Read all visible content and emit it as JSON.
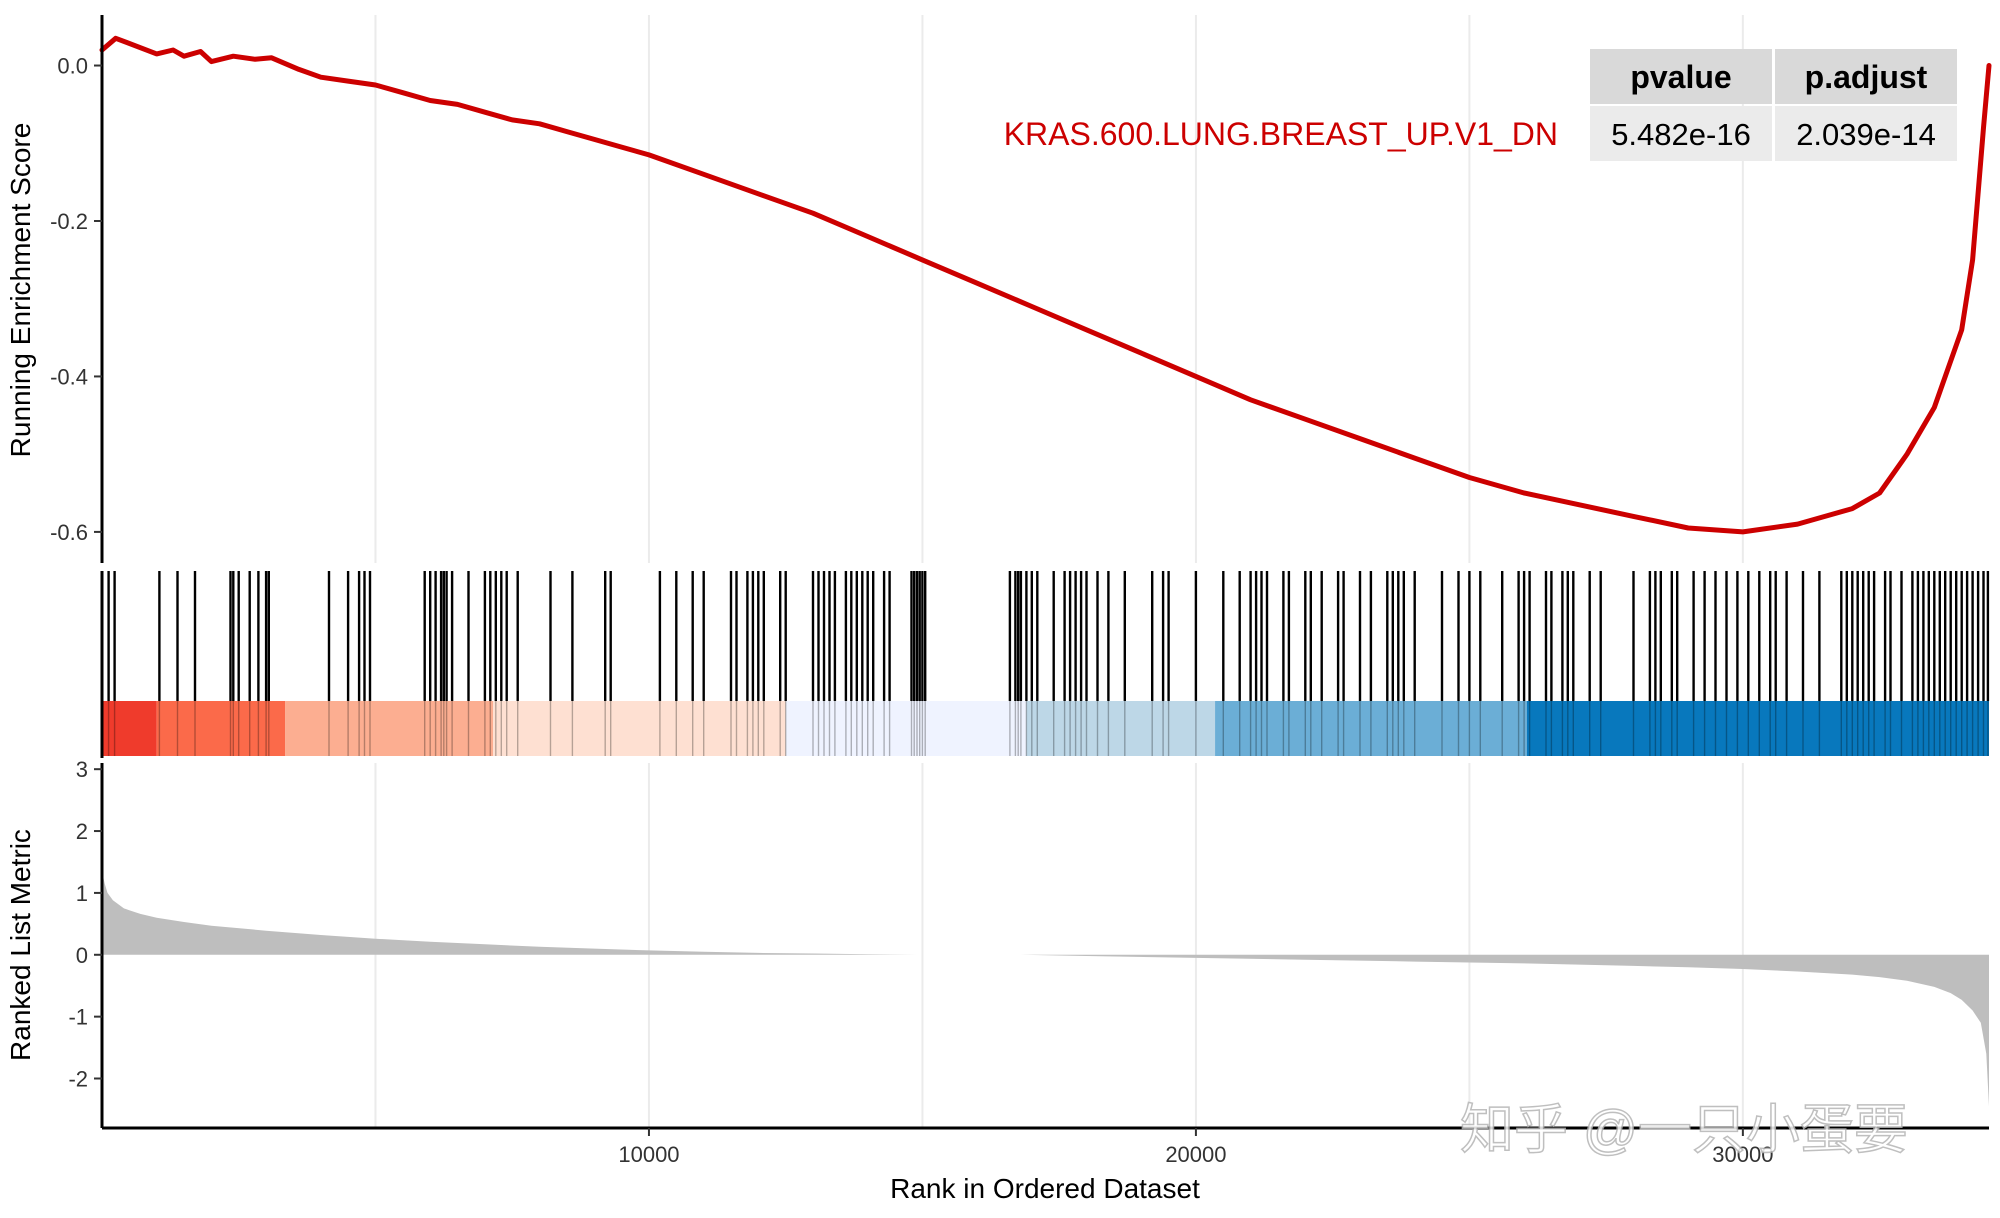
{
  "chart_data": {
    "type": "line",
    "plot": "GSEA enrichment plot",
    "gene_set": "KRAS.600.LUNG.BREAST_UP.V1_DN",
    "line_color": "#cc0000",
    "xlabel": "Rank in Ordered Dataset",
    "xlim": [
      0,
      34500
    ],
    "xticks": [
      10000,
      20000,
      30000
    ],
    "x_gridlines": [
      5000,
      10000,
      15000,
      20000,
      25000,
      30000
    ],
    "panels": {
      "running_es": {
        "ylabel": "Running Enrichment Score",
        "ylim": [
          -0.64,
          0.065
        ],
        "yticks": [
          0.0,
          -0.2,
          -0.4,
          -0.6
        ],
        "ytick_labels": [
          "0.0",
          "-0.2",
          "-0.4",
          "-0.6"
        ],
        "curve": {
          "x": [
            0,
            250,
            1000,
            1300,
            1500,
            1800,
            2000,
            2400,
            2800,
            3100,
            3600,
            4000,
            4500,
            5000,
            5500,
            6000,
            6500,
            7000,
            7500,
            8000,
            8500,
            9000,
            9500,
            10000,
            11000,
            12000,
            13000,
            14000,
            15000,
            16000,
            17000,
            18000,
            19000,
            20000,
            21000,
            22000,
            23000,
            24000,
            25000,
            26000,
            27000,
            28000,
            29000,
            30000,
            31000,
            31500,
            32000,
            32500,
            33000,
            33500,
            34000,
            34200,
            34400,
            34500
          ],
          "y": [
            0.02,
            0.035,
            0.015,
            0.02,
            0.012,
            0.018,
            0.005,
            0.012,
            0.008,
            0.01,
            -0.005,
            -0.015,
            -0.02,
            -0.025,
            -0.035,
            -0.045,
            -0.05,
            -0.06,
            -0.07,
            -0.075,
            -0.085,
            -0.095,
            -0.105,
            -0.115,
            -0.14,
            -0.165,
            -0.19,
            -0.22,
            -0.25,
            -0.28,
            -0.31,
            -0.34,
            -0.37,
            -0.4,
            -0.43,
            -0.455,
            -0.48,
            -0.505,
            -0.53,
            -0.55,
            -0.565,
            -0.58,
            -0.595,
            -0.6,
            -0.59,
            -0.58,
            -0.57,
            -0.55,
            -0.5,
            -0.44,
            -0.34,
            -0.25,
            -0.08,
            0.0
          ]
        }
      },
      "hits": {
        "description": "vertical hit lines marking gene-set members along the ranked list",
        "positions": [
          120,
          230,
          1050,
          1380,
          1700,
          2350,
          2400,
          2500,
          2700,
          2860,
          3000,
          3050,
          4150,
          4500,
          4700,
          4800,
          4900,
          5900,
          6000,
          6100,
          6200,
          6250,
          6300,
          6400,
          6700,
          7000,
          7100,
          7200,
          7300,
          7400,
          7600,
          8200,
          8600,
          9200,
          9300,
          10200,
          10500,
          10800,
          11000,
          11500,
          11600,
          11800,
          11900,
          12000,
          12100,
          12400,
          12500,
          13000,
          13100,
          13200,
          13300,
          13400,
          13600,
          13700,
          13800,
          13900,
          14000,
          14100,
          14300,
          14400,
          14800,
          14850,
          14900,
          14950,
          15000,
          15050,
          16600,
          16700,
          16750,
          16800,
          16900,
          17000,
          17100,
          17400,
          17600,
          17700,
          17800,
          17900,
          18000,
          18200,
          18400,
          18700,
          19200,
          19400,
          19500,
          20000,
          20500,
          20800,
          21000,
          21100,
          21200,
          21300,
          21600,
          21700,
          22000,
          22100,
          22300,
          22600,
          22700,
          23000,
          23200,
          23500,
          23600,
          23700,
          23800,
          24000,
          24500,
          24800,
          25000,
          25200,
          25600,
          25900,
          26000,
          26100,
          26400,
          26500,
          26700,
          26800,
          26900,
          27200,
          27400,
          28000,
          28300,
          28400,
          28500,
          28700,
          28800,
          29100,
          29300,
          29500,
          29700,
          29900,
          30100,
          30300,
          30500,
          30600,
          30800,
          31100,
          31400,
          31800,
          31900,
          32000,
          32100,
          32200,
          32300,
          32400,
          32600,
          32700,
          32900,
          33100,
          33200,
          33300,
          33400,
          33500,
          33600,
          33700,
          33800,
          33900,
          34000,
          34100,
          34200,
          34300,
          34400,
          34480
        ],
        "color_bands": [
          {
            "from": 0,
            "to": 1000,
            "color": "#ef3b2c"
          },
          {
            "from": 1000,
            "to": 3350,
            "color": "#fb6a4a"
          },
          {
            "from": 3350,
            "to": 7150,
            "color": "#fcae91"
          },
          {
            "from": 7150,
            "to": 12500,
            "color": "#fee0d2"
          },
          {
            "from": 12500,
            "to": 16900,
            "color": "#eff3ff"
          },
          {
            "from": 16900,
            "to": 20350,
            "color": "#bdd7e7"
          },
          {
            "from": 20350,
            "to": 26050,
            "color": "#6baed6"
          },
          {
            "from": 26050,
            "to": 34500,
            "color": "#0878bd"
          }
        ]
      },
      "ranked_metric": {
        "ylabel": "Ranked List Metric",
        "ylim": [
          -2.8,
          3.1
        ],
        "yticks": [
          3,
          2,
          1,
          0,
          -1,
          -2
        ],
        "ytick_labels": [
          "3",
          "2",
          "1",
          "0",
          "-1",
          "-2"
        ],
        "fill_color": "#bebebe",
        "gap": [
          14900,
          16800
        ],
        "curve": {
          "x": [
            0,
            50,
            100,
            200,
            400,
            700,
            1000,
            1500,
            2000,
            3000,
            4000,
            5000,
            6000,
            7000,
            8000,
            9000,
            10000,
            11000,
            12000,
            13000,
            14000,
            14900,
            16800,
            18000,
            20000,
            22000,
            24000,
            26000,
            28000,
            29000,
            30000,
            31000,
            32000,
            32500,
            33000,
            33500,
            33800,
            34000,
            34200,
            34350,
            34450,
            34500
          ],
          "y": [
            1.35,
            1.15,
            1.0,
            0.88,
            0.75,
            0.66,
            0.6,
            0.53,
            0.47,
            0.39,
            0.32,
            0.26,
            0.21,
            0.17,
            0.13,
            0.1,
            0.07,
            0.05,
            0.03,
            0.02,
            0.01,
            0.0,
            0.0,
            -0.02,
            -0.05,
            -0.08,
            -0.11,
            -0.14,
            -0.18,
            -0.2,
            -0.23,
            -0.27,
            -0.32,
            -0.36,
            -0.42,
            -0.52,
            -0.62,
            -0.73,
            -0.9,
            -1.1,
            -1.6,
            -2.45
          ]
        }
      }
    },
    "table": {
      "headers": [
        "pvalue",
        "p.adjust"
      ],
      "values": [
        "5.482e-16",
        "2.039e-14"
      ],
      "header_bg": "#d9d9d9",
      "cell_bg": "#ebebeb"
    },
    "watermark": "知乎 @一只小蛋要"
  }
}
